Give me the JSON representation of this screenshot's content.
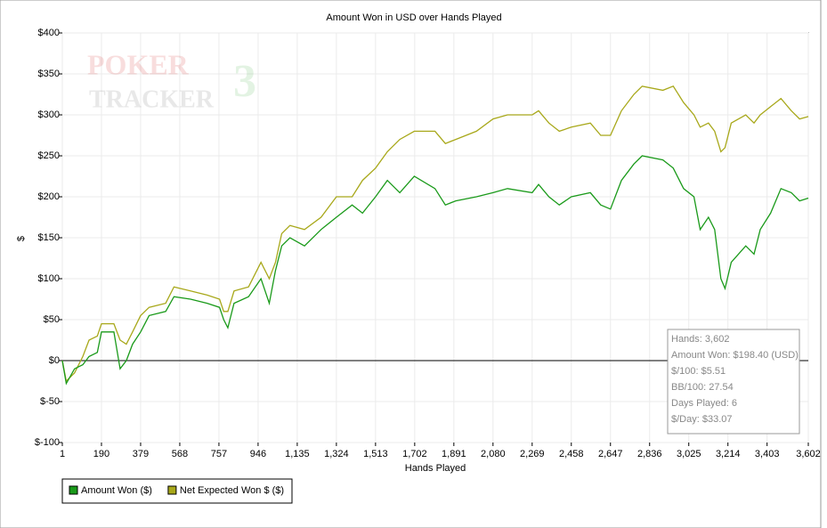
{
  "chart_data": {
    "type": "line",
    "title": "Amount Won in USD over Hands Played",
    "xlabel": "Hands Played",
    "ylabel": "$",
    "x": [
      1,
      20,
      60,
      100,
      130,
      170,
      190,
      250,
      280,
      310,
      340,
      379,
      420,
      500,
      540,
      620,
      700,
      760,
      780,
      800,
      830,
      900,
      960,
      1000,
      1030,
      1060,
      1100,
      1170,
      1250,
      1324,
      1400,
      1450,
      1513,
      1570,
      1630,
      1700,
      1800,
      1850,
      1900,
      2000,
      2080,
      2150,
      2269,
      2300,
      2350,
      2400,
      2458,
      2550,
      2600,
      2647,
      2700,
      2760,
      2800,
      2900,
      2950,
      3000,
      3050,
      3080,
      3120,
      3150,
      3180,
      3200,
      3230,
      3300,
      3340,
      3370,
      3420,
      3470,
      3520,
      3560,
      3602
    ],
    "series": [
      {
        "name": "Amount Won ($)",
        "color": "#1a9a1a",
        "values": [
          0,
          -28,
          -10,
          -5,
          5,
          10,
          35,
          35,
          -10,
          0,
          20,
          35,
          55,
          60,
          78,
          75,
          70,
          65,
          50,
          40,
          70,
          78,
          100,
          70,
          110,
          140,
          150,
          140,
          160,
          175,
          190,
          180,
          200,
          220,
          205,
          225,
          210,
          190,
          195,
          200,
          205,
          210,
          205,
          215,
          200,
          190,
          200,
          205,
          190,
          185,
          220,
          240,
          250,
          245,
          235,
          210,
          200,
          160,
          175,
          160,
          100,
          88,
          120,
          140,
          130,
          160,
          180,
          210,
          205,
          195,
          198.4
        ]
      },
      {
        "name": "Net Expected Won $ ($)",
        "color": "#a8a81a",
        "values": [
          0,
          -25,
          -15,
          5,
          25,
          30,
          45,
          45,
          25,
          20,
          35,
          55,
          65,
          70,
          90,
          85,
          80,
          75,
          60,
          60,
          85,
          90,
          120,
          100,
          120,
          155,
          165,
          160,
          175,
          200,
          200,
          220,
          235,
          255,
          270,
          280,
          280,
          265,
          270,
          280,
          295,
          300,
          300,
          305,
          290,
          280,
          285,
          290,
          275,
          275,
          305,
          325,
          335,
          330,
          335,
          315,
          300,
          285,
          290,
          280,
          255,
          260,
          290,
          300,
          290,
          300,
          310,
          320,
          305,
          295,
          298
        ]
      }
    ],
    "xlim": [
      1,
      3602
    ],
    "xticks": [
      1,
      190,
      379,
      568,
      757,
      946,
      {
        "value": 1135,
        "label": "1,135"
      },
      {
        "value": 1324,
        "label": "1,324"
      },
      {
        "value": 1513,
        "label": "1,513"
      },
      {
        "value": 1702,
        "label": "1,702"
      },
      {
        "value": 1891,
        "label": "1,891"
      },
      {
        "value": 2080,
        "label": "2,080"
      },
      {
        "value": 2269,
        "label": "2,269"
      },
      {
        "value": 2458,
        "label": "2,458"
      },
      {
        "value": 2647,
        "label": "2,647"
      },
      {
        "value": 2836,
        "label": "2,836"
      },
      {
        "value": 3025,
        "label": "3,025"
      },
      {
        "value": 3214,
        "label": "3,214"
      },
      {
        "value": 3403,
        "label": "3,403"
      },
      {
        "value": 3602,
        "label": "3,602"
      }
    ],
    "ylim": [
      -100,
      400
    ],
    "yticks": [
      {
        "value": -100,
        "label": "$-100"
      },
      {
        "value": -50,
        "label": "$-50"
      },
      {
        "value": 0,
        "label": "$0"
      },
      {
        "value": 50,
        "label": "$50"
      },
      {
        "value": 100,
        "label": "$100"
      },
      {
        "value": 150,
        "label": "$150"
      },
      {
        "value": 200,
        "label": "$200"
      },
      {
        "value": 250,
        "label": "$250"
      },
      {
        "value": 300,
        "label": "$300"
      },
      {
        "value": 350,
        "label": "$350"
      },
      {
        "value": 400,
        "label": "$400"
      }
    ],
    "grid": true,
    "watermark": [
      "POKER",
      "TRACKER",
      "3"
    ],
    "stats": [
      "Hands: 3,602",
      "Amount Won: $198.40 (USD)",
      "$/100: $5.51",
      "BB/100: 27.54",
      "Days Played: 6",
      "$/Day: $33.07"
    ]
  }
}
